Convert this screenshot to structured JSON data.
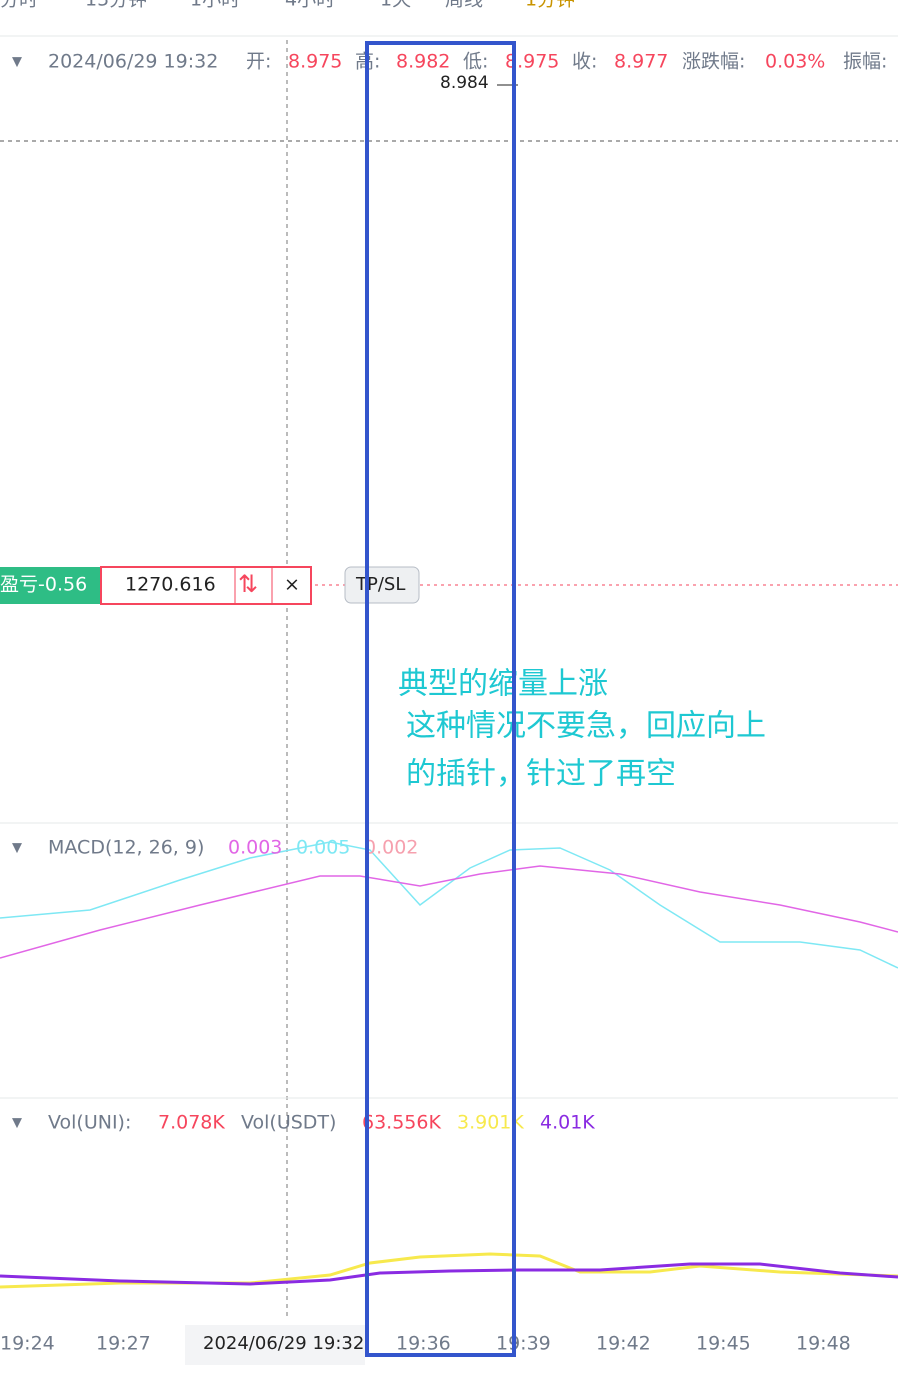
{
  "tabs": [
    "分时",
    "15分钟",
    "1小时",
    "4小时",
    "1天",
    "周线",
    "1分钟"
  ],
  "info": {
    "time": "2024/06/29 19:32",
    "open_label": "开:",
    "open": "8.975",
    "high_label": "高:",
    "high": "8.982",
    "low_label": "低:",
    "low": "8.975",
    "close_label": "收:",
    "close": "8.977",
    "change_label": "涨跌幅:",
    "change": "0.03%",
    "amp_label": "振幅:"
  },
  "price_marker": "8.984",
  "position": {
    "pnl": "盈亏-0.56",
    "price": "1270.616",
    "tpsl": "TP/SL"
  },
  "annotation": [
    "典型的缩量上涨",
    "这种情况不要急，回应向上",
    "的插针，针过了再空"
  ],
  "macd": {
    "label": "MACD(12, 26, 9)",
    "dif": "0.003",
    "dea": "0.005",
    "hist": "0.002"
  },
  "volume": {
    "label": "Vol(UNI):",
    "uni": "7.078K",
    "usdt_label": "Vol(USDT)",
    "usdt": "63.556K",
    "ma5": "3.901K",
    "ma10": "4.01K"
  },
  "x_axis": [
    "19:24",
    "19:27",
    "2024/06/29 19:32",
    "19:36",
    "19:39",
    "19:42",
    "19:45",
    "19:48"
  ]
}
